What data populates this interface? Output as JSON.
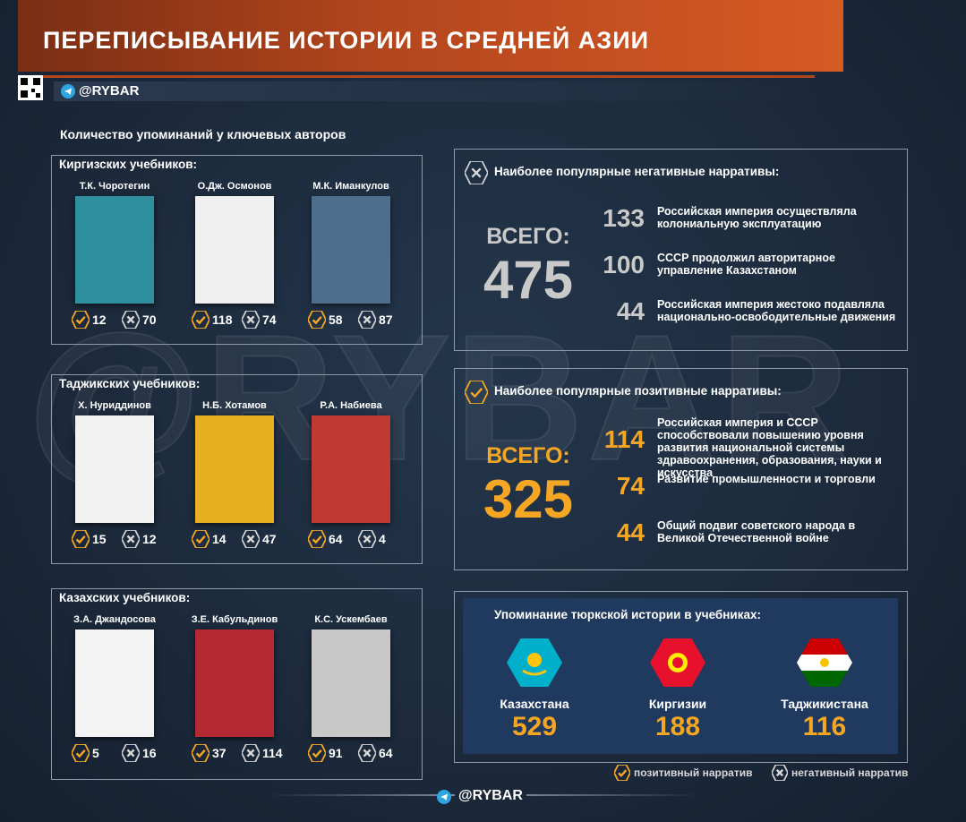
{
  "header": {
    "title": "ПЕРЕПИСЫВАНИЕ ИСТОРИИ В СРЕДНЕЙ АЗИИ",
    "handle": "@RYBAR"
  },
  "watermark": "@RYBAR",
  "subtitle": "Количество упоминаний у ключевых авторов",
  "groups": [
    {
      "title": "Киргизских учебников:",
      "books": [
        {
          "author": "Т.К. Чоротегин",
          "positive": 12,
          "negative": 70
        },
        {
          "author": "О.Дж. Осмонов",
          "positive": 118,
          "negative": 74
        },
        {
          "author": "М.К. Иманкулов",
          "positive": 58,
          "negative": 87
        }
      ]
    },
    {
      "title": "Таджикских учебников:",
      "books": [
        {
          "author": "Х. Нуриддинов",
          "positive": 15,
          "negative": 12
        },
        {
          "author": "Н.Б. Хотамов",
          "positive": 14,
          "negative": 47
        },
        {
          "author": "Р.А. Набиева",
          "positive": 64,
          "negative": 4
        }
      ]
    },
    {
      "title": "Казахских учебников:",
      "books": [
        {
          "author": "З.А. Джандосова",
          "positive": 5,
          "negative": 16
        },
        {
          "author": "З.Е. Кабульдинов",
          "positive": 37,
          "negative": 114
        },
        {
          "author": "К.С. Ускембаев",
          "positive": 91,
          "negative": 64
        }
      ]
    }
  ],
  "negative": {
    "title": "Наиболее популярные негативные нарративы:",
    "total_label": "ВСЕГО:",
    "total": 475,
    "items": [
      {
        "value": 133,
        "text": "Российская империя осуществляла колониальную эксплуатацию"
      },
      {
        "value": 100,
        "text": "СССР продолжил авторитарное управление Казахстаном"
      },
      {
        "value": 44,
        "text": "Российская империя жестоко подавляла национально-освободительные движения"
      }
    ]
  },
  "positive": {
    "title": "Наиболее популярные позитивные нарративы:",
    "total_label": "ВСЕГО:",
    "total": 325,
    "items": [
      {
        "value": 114,
        "text": "Российская империя и СССР способствовали повышению уровня развития национальной системы здравоохранения, образования, науки и искусства"
      },
      {
        "value": 74,
        "text": "Развитие промышленности и торговли"
      },
      {
        "value": 44,
        "text": "Общий подвиг советского народа в Великой Отечественной войне"
      }
    ]
  },
  "turkic": {
    "title": "Упоминание тюркской истории в учебниках:",
    "items": [
      {
        "country": "Казахстана",
        "value": 529
      },
      {
        "country": "Киргизии",
        "value": 188
      },
      {
        "country": "Таджикистана",
        "value": 116
      }
    ]
  },
  "legend": {
    "positive": "позитивный нарратив",
    "negative": "негативный нарратив"
  },
  "footer": {
    "handle": "@RYBAR"
  }
}
